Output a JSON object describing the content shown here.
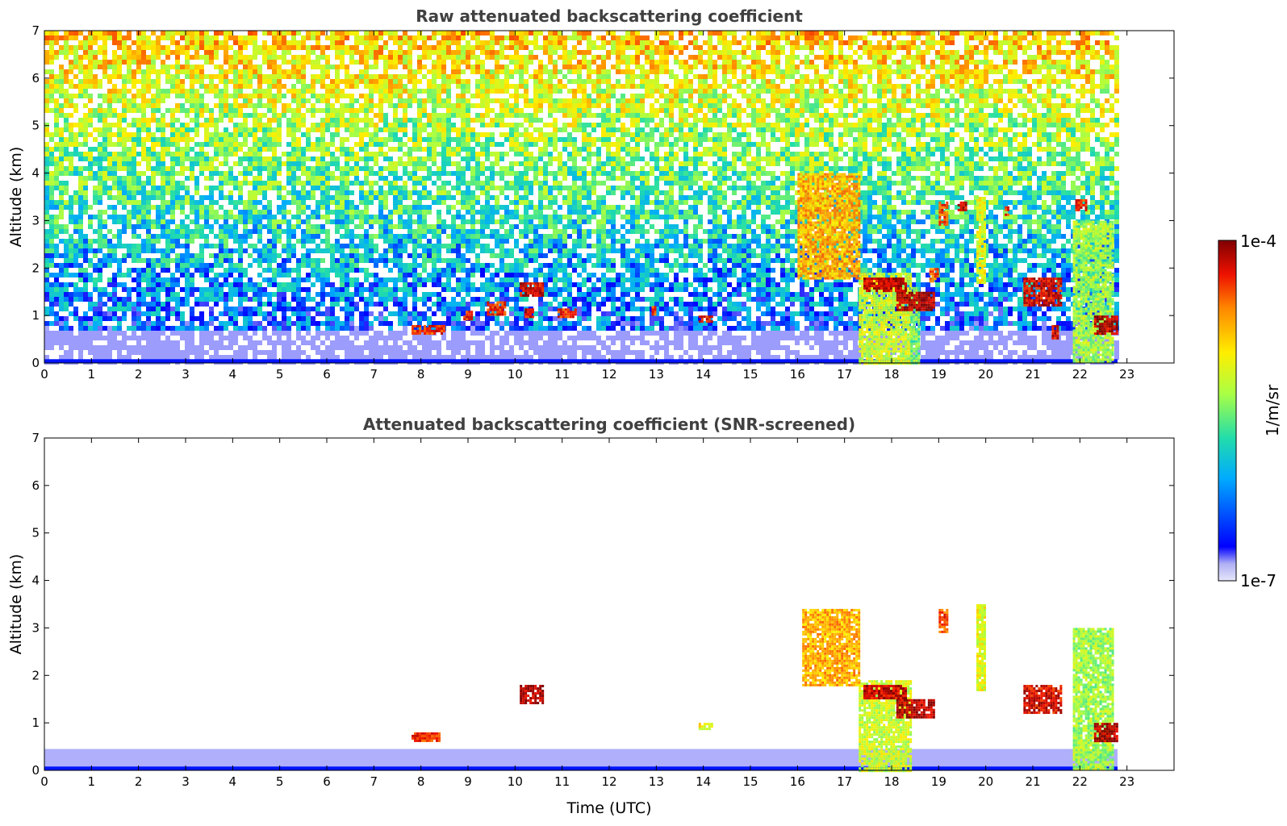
{
  "chart_data": [
    {
      "type": "heatmap",
      "title": "Raw attenuated backscattering coefficient",
      "xlabel": "",
      "ylabel": "Altitude (km)",
      "xlim": [
        0,
        24
      ],
      "ylim": [
        0,
        7
      ],
      "x_ticks": [
        "0",
        "1",
        "2",
        "3",
        "4",
        "5",
        "6",
        "7",
        "8",
        "9",
        "10",
        "11",
        "12",
        "13",
        "14",
        "15",
        "16",
        "17",
        "18",
        "19",
        "20",
        "21",
        "22",
        "23"
      ],
      "y_ticks": [
        "0",
        "1",
        "2",
        "3",
        "4",
        "5",
        "6",
        "7"
      ],
      "data_extent_x": [
        0,
        22.8
      ],
      "grid": false,
      "features": [
        {
          "time_range": [
            17.3,
            18.4
          ],
          "altitude_range": [
            0,
            1.9
          ],
          "level": 0.55
        },
        {
          "time_range": [
            18.4,
            18.6
          ],
          "altitude_range": [
            0,
            1.6
          ],
          "level": 0.45
        },
        {
          "time_range": [
            21.85,
            22.7
          ],
          "altitude_range": [
            0,
            3.0
          ],
          "level": 0.5
        },
        {
          "time_range": [
            16.0,
            17.3
          ],
          "altitude_range": [
            1.8,
            4.0
          ],
          "level": 0.7
        },
        {
          "time_range": [
            17.4,
            18.3
          ],
          "altitude_range": [
            1.5,
            1.8
          ],
          "level": 0.92
        },
        {
          "time_range": [
            18.1,
            18.9
          ],
          "altitude_range": [
            1.1,
            1.5
          ],
          "level": 0.95
        },
        {
          "time_range": [
            18.8,
            19.0
          ],
          "altitude_range": [
            1.7,
            2.0
          ],
          "level": 0.8
        },
        {
          "time_range": [
            19.0,
            19.2
          ],
          "altitude_range": [
            2.9,
            3.4
          ],
          "level": 0.82
        },
        {
          "time_range": [
            19.4,
            19.6
          ],
          "altitude_range": [
            3.2,
            3.4
          ],
          "level": 0.9
        },
        {
          "time_range": [
            19.8,
            20.0
          ],
          "altitude_range": [
            1.7,
            3.5
          ],
          "level": 0.58
        },
        {
          "time_range": [
            20.4,
            20.5
          ],
          "altitude_range": [
            3.1,
            3.3
          ],
          "level": 0.85
        },
        {
          "time_range": [
            20.8,
            21.6
          ],
          "altitude_range": [
            1.2,
            1.8
          ],
          "level": 0.9
        },
        {
          "time_range": [
            21.4,
            21.55
          ],
          "altitude_range": [
            0.5,
            0.8
          ],
          "level": 0.9
        },
        {
          "time_range": [
            21.9,
            22.15
          ],
          "altitude_range": [
            3.2,
            3.45
          ],
          "level": 0.85
        },
        {
          "time_range": [
            22.3,
            22.8
          ],
          "altitude_range": [
            0.6,
            1.0
          ],
          "level": 0.95
        },
        {
          "time_range": [
            10.1,
            10.6
          ],
          "altitude_range": [
            1.4,
            1.7
          ],
          "level": 0.92
        },
        {
          "time_range": [
            7.8,
            8.5
          ],
          "altitude_range": [
            0.6,
            0.8
          ],
          "level": 0.85
        },
        {
          "time_range": [
            8.9,
            9.1
          ],
          "altitude_range": [
            0.9,
            1.1
          ],
          "level": 0.85
        },
        {
          "time_range": [
            9.4,
            9.8
          ],
          "altitude_range": [
            1.0,
            1.3
          ],
          "level": 0.85
        },
        {
          "time_range": [
            10.2,
            10.4
          ],
          "altitude_range": [
            0.95,
            1.15
          ],
          "level": 0.9
        },
        {
          "time_range": [
            10.9,
            11.3
          ],
          "altitude_range": [
            0.95,
            1.15
          ],
          "level": 0.85
        },
        {
          "time_range": [
            12.9,
            13.0
          ],
          "altitude_range": [
            1.0,
            1.2
          ],
          "level": 0.8
        },
        {
          "time_range": [
            13.9,
            14.2
          ],
          "altitude_range": [
            0.85,
            1.0
          ],
          "level": 0.85
        }
      ]
    },
    {
      "type": "heatmap",
      "title": "Attenuated backscattering coefficient (SNR-screened)",
      "xlabel": "Time (UTC)",
      "ylabel": "Altitude (km)",
      "xlim": [
        0,
        24
      ],
      "ylim": [
        0,
        7
      ],
      "x_ticks": [
        "0",
        "1",
        "2",
        "3",
        "4",
        "5",
        "6",
        "7",
        "8",
        "9",
        "10",
        "11",
        "12",
        "13",
        "14",
        "15",
        "16",
        "17",
        "18",
        "19",
        "20",
        "21",
        "22",
        "23"
      ],
      "y_ticks": [
        "0",
        "1",
        "2",
        "3",
        "4",
        "5",
        "6",
        "7"
      ],
      "data_extent_x": [
        0,
        22.8
      ],
      "grid": false,
      "features": [
        {
          "time_range": [
            17.3,
            18.4
          ],
          "altitude_range": [
            0,
            1.9
          ],
          "level": 0.55
        },
        {
          "time_range": [
            21.85,
            22.7
          ],
          "altitude_range": [
            0,
            3.0
          ],
          "level": 0.5
        },
        {
          "time_range": [
            16.1,
            17.3
          ],
          "altitude_range": [
            1.8,
            3.4
          ],
          "level": 0.7
        },
        {
          "time_range": [
            17.4,
            18.3
          ],
          "altitude_range": [
            1.5,
            1.8
          ],
          "level": 0.92
        },
        {
          "time_range": [
            18.1,
            18.9
          ],
          "altitude_range": [
            1.1,
            1.5
          ],
          "level": 0.95
        },
        {
          "time_range": [
            19.0,
            19.2
          ],
          "altitude_range": [
            2.9,
            3.4
          ],
          "level": 0.82
        },
        {
          "time_range": [
            19.8,
            20.0
          ],
          "altitude_range": [
            1.7,
            3.5
          ],
          "level": 0.58
        },
        {
          "time_range": [
            20.8,
            21.6
          ],
          "altitude_range": [
            1.2,
            1.8
          ],
          "level": 0.9
        },
        {
          "time_range": [
            22.3,
            22.8
          ],
          "altitude_range": [
            0.6,
            1.0
          ],
          "level": 0.95
        },
        {
          "time_range": [
            10.1,
            10.6
          ],
          "altitude_range": [
            1.4,
            1.8
          ],
          "level": 0.95
        },
        {
          "time_range": [
            7.8,
            8.4
          ],
          "altitude_range": [
            0.6,
            0.8
          ],
          "level": 0.85
        },
        {
          "time_range": [
            13.9,
            14.2
          ],
          "altitude_range": [
            0.85,
            1.0
          ],
          "level": 0.6
        }
      ]
    }
  ],
  "colorbar": {
    "label": "1/m/sr",
    "max_label": "1e-4",
    "min_label": "1e-7",
    "colors": [
      "#e6e6fa",
      "#0000ff",
      "#00aaff",
      "#22ddaa",
      "#aaff44",
      "#ffee00",
      "#ff8800",
      "#ee1100",
      "#800000"
    ]
  }
}
